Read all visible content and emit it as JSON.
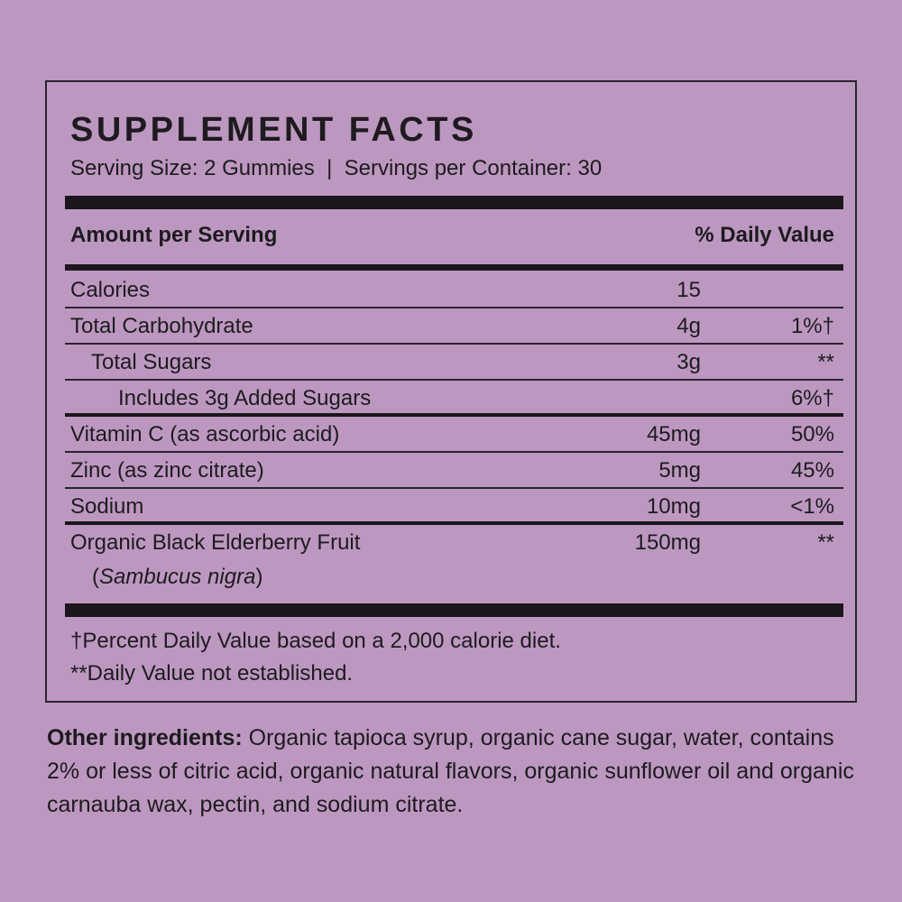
{
  "title": "SUPPLEMENT FACTS",
  "serving_line": "Serving Size: 2 Gummies  |  Servings per Container: 30",
  "header": {
    "amount": "Amount per Serving",
    "dv": "% Daily Value"
  },
  "rows": [
    {
      "name": "Calories",
      "amount": "15",
      "dv": ""
    },
    {
      "name": "Total Carbohydrate",
      "amount": "4g",
      "dv": "1%†"
    },
    {
      "name": "Total Sugars",
      "amount": "3g",
      "dv": "**"
    },
    {
      "name": "Includes 3g Added Sugars",
      "amount": "",
      "dv": "6%†"
    },
    {
      "name": "Vitamin C (as ascorbic acid)",
      "amount": "45mg",
      "dv": "50%"
    },
    {
      "name": "Zinc (as zinc citrate)",
      "amount": "5mg",
      "dv": "45%"
    },
    {
      "name": "Sodium",
      "amount": "10mg",
      "dv": "<1%"
    },
    {
      "name": "Organic Black Elderberry Fruit",
      "amount": "150mg",
      "dv": "**",
      "sub_open": "(",
      "sub_latin": "Sambucus nigra",
      "sub_close": ")"
    }
  ],
  "footnotes": [
    "†Percent Daily Value based on a 2,000 calorie diet.",
    "**Daily Value not established."
  ],
  "other_ingredients": {
    "label": "Other ingredients:",
    "text": " Organic tapioca syrup, organic cane sugar, water, contains 2% or less of citric acid, organic natural flavors, organic sunflower oil and organic carnauba wax, pectin, and sodium citrate."
  },
  "colors": {
    "background": "#bc98c0",
    "text": "#1e1a1f"
  }
}
